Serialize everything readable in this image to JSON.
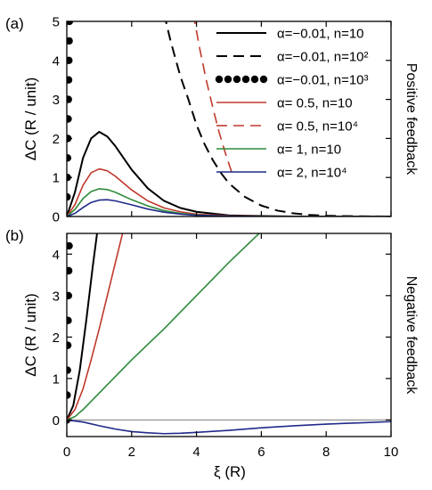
{
  "figure": {
    "xlabel": "ξ (R)",
    "ylabel": "ΔC (R / unit)"
  },
  "chart_data": [
    {
      "panel": "(a)",
      "type": "line",
      "side_label": "Positive feedback",
      "xlabel": "",
      "ylabel": "ΔC (R / unit)",
      "xlim": [
        0,
        10
      ],
      "ylim": [
        0,
        5
      ],
      "xticks": [
        "0",
        "2",
        "4",
        "6",
        "8",
        "10"
      ],
      "yticks": [
        "0",
        "1",
        "2",
        "3",
        "4",
        "5"
      ],
      "xtick_values": [
        0,
        2,
        4,
        6,
        8,
        10
      ],
      "ytick_values": [
        0,
        1,
        2,
        3,
        4,
        5
      ],
      "grid": false,
      "legend_position": "top-right",
      "series": [
        {
          "name": "α=−0.01, n=10",
          "color": "#000000",
          "style": "solid",
          "x": [
            0,
            0.25,
            0.5,
            0.75,
            1.0,
            1.25,
            1.5,
            2.0,
            2.5,
            3.0,
            3.5,
            4.0,
            5.0,
            6.0,
            7.0,
            8.0,
            10.0
          ],
          "y": [
            0,
            0.62,
            1.5,
            2.0,
            2.17,
            2.05,
            1.8,
            1.2,
            0.72,
            0.4,
            0.22,
            0.12,
            0.03,
            0.01,
            0,
            0,
            0
          ]
        },
        {
          "name": "α=−0.01, n=10²",
          "color": "#000000",
          "style": "dashed",
          "x": [
            3.0,
            3.2,
            3.5,
            3.75,
            4.0,
            4.25,
            4.5,
            4.75,
            5.0,
            5.5,
            6.0,
            6.5,
            7.0,
            7.5,
            8.0,
            9.0,
            10.0
          ],
          "y": [
            5.2,
            4.5,
            3.6,
            3.0,
            2.35,
            1.85,
            1.45,
            1.12,
            0.85,
            0.5,
            0.28,
            0.15,
            0.08,
            0.04,
            0.02,
            0.005,
            0
          ]
        },
        {
          "name": "α=−0.01, n=10³",
          "color": "#000000",
          "style": "dotted",
          "x": [
            0.0,
            0.008,
            0.016,
            0.024,
            0.032,
            0.04,
            0.048,
            0.056,
            0.064,
            0.072,
            0.08
          ],
          "y": [
            0,
            0.5,
            1.0,
            1.5,
            2.0,
            2.5,
            3.0,
            3.5,
            4.0,
            4.5,
            5.0
          ]
        },
        {
          "name": "α= 0.5, n=10",
          "color": "#c0392b",
          "style": "solid",
          "x": [
            0,
            0.25,
            0.5,
            0.75,
            1.0,
            1.25,
            1.5,
            2.0,
            2.5,
            3.0,
            3.5,
            4.0,
            5.0,
            6.0,
            7.0,
            8.0,
            10.0
          ],
          "y": [
            0,
            0.3,
            0.8,
            1.12,
            1.22,
            1.17,
            1.03,
            0.68,
            0.4,
            0.22,
            0.12,
            0.06,
            0.02,
            0.005,
            0,
            0,
            0
          ]
        },
        {
          "name": "α= 0.5, n=10⁴",
          "color": "#c0392b",
          "style": "dashed",
          "x": [
            3.9,
            4.1,
            4.3,
            4.5,
            4.7,
            4.9,
            5.1
          ],
          "y": [
            5.2,
            4.3,
            3.5,
            2.8,
            2.15,
            1.6,
            1.1
          ]
        },
        {
          "name": "α= 1, n=10",
          "color": "#2e8b3a",
          "style": "solid",
          "x": [
            0,
            0.25,
            0.5,
            0.75,
            1.0,
            1.25,
            1.5,
            2.0,
            2.5,
            3.0,
            3.5,
            4.0,
            5.0,
            6.0,
            8.0,
            10.0
          ],
          "y": [
            0,
            0.18,
            0.46,
            0.64,
            0.71,
            0.69,
            0.62,
            0.43,
            0.27,
            0.15,
            0.08,
            0.04,
            0.01,
            0,
            0,
            0
          ]
        },
        {
          "name": "α= 2, n=10⁴",
          "color": "#1f2a8a",
          "style": "solid",
          "x": [
            0,
            0.25,
            0.5,
            0.75,
            1.0,
            1.25,
            1.5,
            2.0,
            2.5,
            3.0,
            3.5,
            4.0,
            5.0,
            6.0,
            8.0,
            10.0
          ],
          "y": [
            0,
            0.08,
            0.23,
            0.36,
            0.42,
            0.43,
            0.4,
            0.3,
            0.19,
            0.11,
            0.06,
            0.03,
            0.01,
            0,
            0,
            0
          ]
        }
      ]
    },
    {
      "panel": "(b)",
      "type": "line",
      "side_label": "Negative feedback",
      "xlabel": "ξ (R)",
      "ylabel": "ΔC (R / unit)",
      "xlim": [
        0,
        10
      ],
      "ylim": [
        -0.4,
        4.5
      ],
      "xticks": [
        "0",
        "2",
        "4",
        "6",
        "8",
        "10"
      ],
      "yticks": [
        "0",
        "1",
        "2",
        "3",
        "4"
      ],
      "xtick_values": [
        0,
        2,
        4,
        6,
        8,
        10
      ],
      "ytick_values": [
        0,
        1,
        2,
        3,
        4
      ],
      "grid": false,
      "legend_position": "none",
      "baseline": {
        "y": 0,
        "color": "#999999"
      },
      "series": [
        {
          "name": "α=−0.01, n=10",
          "color": "#000000",
          "style": "solid",
          "x": [
            0,
            0.2,
            0.4,
            0.6,
            0.8,
            0.95
          ],
          "y": [
            0,
            0.35,
            1.2,
            2.4,
            3.7,
            4.6
          ]
        },
        {
          "name": "α=−0.01, n=10³",
          "color": "#000000",
          "style": "dotted",
          "x": [
            0.0,
            0.01,
            0.02,
            0.03,
            0.04,
            0.05,
            0.06,
            0.07
          ],
          "y": [
            0,
            0.6,
            1.2,
            1.8,
            2.4,
            3.0,
            3.6,
            4.2
          ]
        },
        {
          "name": "α= 0.5, n=10",
          "color": "#c0392b",
          "style": "solid",
          "x": [
            0,
            0.25,
            0.5,
            0.75,
            1.0,
            1.25,
            1.5,
            1.75
          ],
          "y": [
            0,
            0.25,
            0.75,
            1.45,
            2.2,
            3.0,
            3.8,
            4.6
          ]
        },
        {
          "name": "α= 1, n=10",
          "color": "#2e8b3a",
          "style": "solid",
          "x": [
            0,
            0.25,
            0.5,
            1.0,
            1.5,
            2.0,
            3.0,
            4.0,
            5.0,
            6.0
          ],
          "y": [
            0,
            0.08,
            0.25,
            0.65,
            1.05,
            1.45,
            2.2,
            3.0,
            3.8,
            4.55
          ]
        },
        {
          "name": "α= 2, n=10⁴",
          "color": "#1f2a8a",
          "style": "solid",
          "x": [
            0,
            0.5,
            1.0,
            1.5,
            2.0,
            2.5,
            3.0,
            3.5,
            4.0,
            5.0,
            6.0,
            7.0,
            8.0,
            9.0,
            10.0
          ],
          "y": [
            0,
            -0.05,
            -0.14,
            -0.22,
            -0.28,
            -0.31,
            -0.33,
            -0.32,
            -0.3,
            -0.25,
            -0.19,
            -0.14,
            -0.1,
            -0.07,
            -0.04
          ]
        }
      ]
    }
  ]
}
